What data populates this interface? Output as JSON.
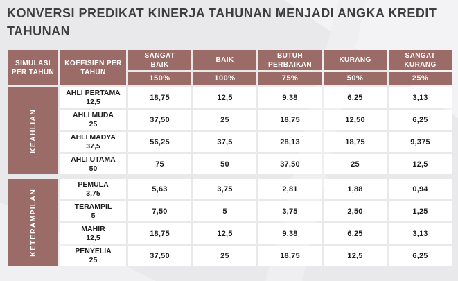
{
  "title": "KONVERSI PREDIKAT KINERJA TAHUNAN MENJADI ANGKA KREDIT\nTAHUNAN",
  "colors": {
    "accent_rose": "#9b6b67",
    "page_background": "#e9e9eb",
    "cell_background": "#ffffff",
    "title_text": "#3e3e3e",
    "cell_text": "#1d1d1d"
  },
  "table": {
    "header": {
      "simulasi": "SIMULASI PER TAHUN",
      "koefisien": "KOEFISIEN PER TAHUN",
      "predicates": [
        {
          "label": "SANGAT BAIK",
          "percent": "150%"
        },
        {
          "label": "BAIK",
          "percent": "100%"
        },
        {
          "label": "BUTUH PERBAIKAN",
          "percent": "75%"
        },
        {
          "label": "KURANG",
          "percent": "50%"
        },
        {
          "label": "SANGAT KURANG",
          "percent": "25%"
        }
      ]
    },
    "sections": [
      {
        "label": "KEAHLIAN",
        "rows": [
          {
            "name": "AHLI PERTAMA",
            "koefisien": "12,5",
            "values": [
              "18,75",
              "12,5",
              "9,38",
              "6,25",
              "3,13"
            ]
          },
          {
            "name": "AHLI MUDA",
            "koefisien": "25",
            "values": [
              "37,50",
              "25",
              "18,75",
              "12,50",
              "6,25"
            ]
          },
          {
            "name": "AHLI MADYA",
            "koefisien": "37,5",
            "values": [
              "56,25",
              "37,5",
              "28,13",
              "18,75",
              "9,375"
            ]
          },
          {
            "name": "AHLI UTAMA",
            "koefisien": "50",
            "values": [
              "75",
              "50",
              "37,50",
              "25",
              "12,5"
            ]
          }
        ]
      },
      {
        "label": "KETERAMPILAN",
        "rows": [
          {
            "name": "PEMULA",
            "koefisien": "3,75",
            "values": [
              "5,63",
              "3,75",
              "2,81",
              "1,88",
              "0,94"
            ]
          },
          {
            "name": "TERAMPIL",
            "koefisien": "5",
            "values": [
              "7,50",
              "5",
              "3,75",
              "2,50",
              "1,25"
            ]
          },
          {
            "name": "MAHIR",
            "koefisien": "12,5",
            "values": [
              "18,75",
              "12,5",
              "9,38",
              "6,25",
              "3,13"
            ]
          },
          {
            "name": "PENYELIA",
            "koefisien": "25",
            "values": [
              "37,50",
              "25",
              "18,75",
              "12,5",
              "6,25"
            ]
          }
        ]
      }
    ]
  }
}
